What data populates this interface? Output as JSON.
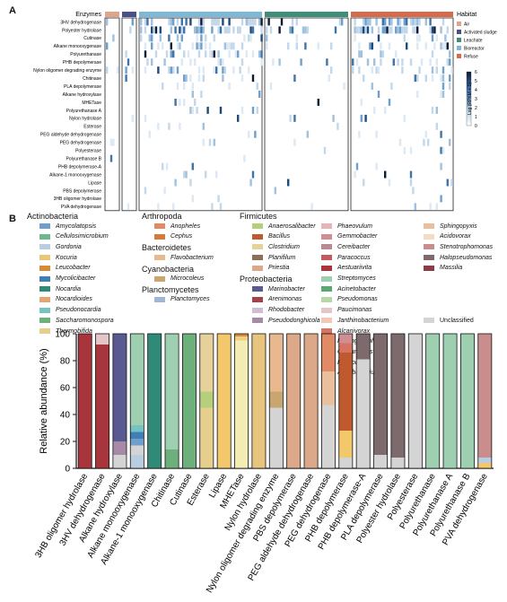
{
  "panel_labels": {
    "a": "A",
    "b": "B"
  },
  "chart_data": [
    {
      "type": "heatmap",
      "panel": "A",
      "column_group_label": "Enzymes",
      "rows": [
        "3HV dehydrogenase",
        "Polyester hydrolase",
        "Cutinase",
        "Alkane monooxygenase",
        "Polyurethanase",
        "PHB depolymerase",
        "Nylon oligomer degrading enzyme",
        "Chitinase",
        "PLA depolymerase",
        "Alkane hydroxylase",
        "MHETase",
        "Polyurethanase A",
        "Nylon hydrolase",
        "Esterase",
        "PEG aldehyde dehydrogenase",
        "PEG dehydrogenase",
        "Polyesterase",
        "Polyurethanase B",
        "PHB depolymerase-A",
        "Alkane-1 monooxygenase",
        "Lipase",
        "PBS depolymerase",
        "3HB oligomer hydrolase",
        "PVA dehydrogenase"
      ],
      "habitat_legend": {
        "title": "Habitat",
        "entries": [
          {
            "label": "Air",
            "color": "#e0a48a"
          },
          {
            "label": "Activated sludge",
            "color": "#4a4f8a"
          },
          {
            "label": "Leachate",
            "color": "#3e8f7a"
          },
          {
            "label": "Bioreactor",
            "color": "#7db8d8"
          },
          {
            "label": "Refuse",
            "color": "#d86a4c"
          }
        ]
      },
      "habitat_bar_order": [
        "Air",
        "Activated sludge",
        "Bioreactor",
        "Leachate",
        "Refuse"
      ],
      "colorbar": {
        "label": "Log (RPKM + 1)",
        "ticks": [
          "0",
          "1",
          "2",
          "3",
          "4",
          "5",
          "6"
        ],
        "range": [
          0,
          6
        ]
      }
    },
    {
      "type": "bar",
      "panel": "B",
      "stacked": true,
      "ylabel": "Relative abundance (%)",
      "ylim": [
        0,
        100
      ],
      "yticks": [
        0,
        20,
        40,
        60,
        80,
        100
      ],
      "categories": [
        "3HB oligomer hydrolase",
        "3HV dehydrogenase",
        "Alkane hydroxylase",
        "Alkane monooxygenase",
        "Alkane-1 monooxygenase",
        "Chitinase",
        "Cutinase",
        "Esterase",
        "Lipase",
        "MHETase",
        "Nylon hydrolase",
        "Nylon oligomer degrading enzyme",
        "PBS depolymerase",
        "PEG aldehyde dehydrogenase",
        "PEG dehydrogenase",
        "PHB depolymerase",
        "PHB depolymerase-A",
        "PLA depolymerase",
        "Polyester hydrolase",
        "Polyesterase",
        "Polyurethanase",
        "Polyurethanase A",
        "Polyurethanase B",
        "PVA dehydrogenase"
      ],
      "legend": [
        {
          "group": "Actinobacteria",
          "items": [
            {
              "name": "Amycolatopsis",
              "color": "#6f9fca"
            },
            {
              "name": "Cellulosimicrobium",
              "color": "#6fb78f"
            },
            {
              "name": "Gordonia",
              "color": "#b9cde0"
            },
            {
              "name": "Kocuria",
              "color": "#e9c77a"
            },
            {
              "name": "Leucobacter",
              "color": "#d98a38"
            },
            {
              "name": "Mycolicibacter",
              "color": "#3f7fb5"
            },
            {
              "name": "Nocardia",
              "color": "#2f8a78"
            },
            {
              "name": "Nocardioides",
              "color": "#e6a56f"
            },
            {
              "name": "Pseudonocardia",
              "color": "#79c2c2"
            },
            {
              "name": "Saccharomonospora",
              "color": "#6db07b"
            },
            {
              "name": "Thermobifida",
              "color": "#e6cf8c"
            }
          ]
        },
        {
          "group": "Arthropoda",
          "items": [
            {
              "name": "Anopheles",
              "color": "#e08a66"
            },
            {
              "name": "Cephus",
              "color": "#d67a3a"
            }
          ]
        },
        {
          "group": "Bacteroidetes",
          "items": [
            {
              "name": "Flavobacterium",
              "color": "#e8b98f"
            }
          ]
        },
        {
          "group": "Cyanobacteria",
          "items": [
            {
              "name": "Microcoleus",
              "color": "#c9a56f"
            }
          ]
        },
        {
          "group": "Planctomycetes",
          "items": [
            {
              "name": "Planctomyces",
              "color": "#9fb6d6"
            }
          ]
        },
        {
          "group": "Firmicutes",
          "items": [
            {
              "name": "Anaerosalibacter",
              "color": "#b5cf7c"
            },
            {
              "name": "Bacillus",
              "color": "#bf5a2f"
            },
            {
              "name": "Clostridium",
              "color": "#e6d19a"
            },
            {
              "name": "Planifilum",
              "color": "#8c6f5a"
            },
            {
              "name": "Priestia",
              "color": "#dba88a"
            }
          ]
        },
        {
          "group": "Proteobacteria",
          "items": [
            {
              "name": "Marinobacter",
              "color": "#5a5a92"
            },
            {
              "name": "Arenimonas",
              "color": "#a8404a"
            },
            {
              "name": "Rhodobacter",
              "color": "#cdbdd6"
            },
            {
              "name": "Pseudodonghicola",
              "color": "#a78aa8"
            },
            {
              "name": "Phaeovulum",
              "color": "#e7b5b8"
            },
            {
              "name": "Gemmobacter",
              "color": "#cf8f92"
            },
            {
              "name": "Cereibacter",
              "color": "#b98a95"
            },
            {
              "name": "Paracoccus",
              "color": "#c25a62"
            },
            {
              "name": "Aestuariivita",
              "color": "#a8343c"
            },
            {
              "name": "Streptomyces",
              "color": "#9dcfb0"
            },
            {
              "name": "Acinetobacter",
              "color": "#58a86f"
            },
            {
              "name": "Pseudomonas",
              "color": "#b4d9a6"
            },
            {
              "name": "Paucimonas",
              "color": "#e4c6c8"
            },
            {
              "name": "Janthinobacterium",
              "color": "#f0c9b4"
            },
            {
              "name": "Alcanivorax",
              "color": "#d67364"
            },
            {
              "name": "Hydrogenophaga",
              "color": "#f2c86a"
            },
            {
              "name": "Comamonas",
              "color": "#f3ecb3"
            },
            {
              "name": "Ralstonia",
              "color": "#eed084"
            },
            {
              "name": "Aquabacterium",
              "color": "#e8c57e"
            },
            {
              "name": "Sphingopyxis",
              "color": "#eabf9b"
            },
            {
              "name": "Acidovorax",
              "color": "#f4dcc4"
            },
            {
              "name": "Stenotrophomonas",
              "color": "#c98d8e"
            },
            {
              "name": "Halopseudomonas",
              "color": "#7d6a6c"
            },
            {
              "name": "Massilia",
              "color": "#8c3c47"
            }
          ]
        },
        {
          "group": "",
          "items": [
            {
              "name": "Unclassified",
              "color": "#d4d4d4"
            }
          ]
        }
      ],
      "stacks": [
        [
          {
            "genus": "Aestuariivita",
            "value": 100
          }
        ],
        [
          {
            "genus": "Aestuariivita",
            "value": 92
          },
          {
            "genus": "Paucimonas",
            "value": 8
          }
        ],
        [
          {
            "genus": "Unclassified",
            "value": 10
          },
          {
            "genus": "Pseudodonghicola",
            "value": 10
          },
          {
            "genus": "Marinobacter",
            "value": 80
          }
        ],
        [
          {
            "genus": "Gordonia",
            "value": 10
          },
          {
            "genus": "Unclassified",
            "value": 7
          },
          {
            "genus": "Amycolatopsis",
            "value": 5
          },
          {
            "genus": "Mycolicibacter",
            "value": 5
          },
          {
            "genus": "Pseudonocardia",
            "value": 5
          },
          {
            "genus": "Streptomyces",
            "value": 68
          }
        ],
        [
          {
            "genus": "Nocardia",
            "value": 100
          }
        ],
        [
          {
            "genus": "Saccharomonospora",
            "value": 14
          },
          {
            "genus": "Streptomyces",
            "value": 86
          }
        ],
        [
          {
            "genus": "Saccharomonospora",
            "value": 100
          }
        ],
        [
          {
            "genus": "Thermobifida",
            "value": 45
          },
          {
            "genus": "Anaerosalibacter",
            "value": 12
          },
          {
            "genus": "Clostridium",
            "value": 43
          }
        ],
        [
          {
            "genus": "Hydrogenophaga",
            "value": 100
          }
        ],
        [
          {
            "genus": "Comamonas",
            "value": 95
          },
          {
            "genus": "Ralstonia",
            "value": 3
          },
          {
            "genus": "Leucobacter",
            "value": 2
          }
        ],
        [
          {
            "genus": "Aquabacterium",
            "value": 100
          }
        ],
        [
          {
            "genus": "Unclassified",
            "value": 45
          },
          {
            "genus": "Microcoleus",
            "value": 12
          },
          {
            "genus": "Flavobacterium",
            "value": 43
          }
        ],
        [
          {
            "genus": "Priestia",
            "value": 100
          }
        ],
        [
          {
            "genus": "Priestia",
            "value": 100
          }
        ],
        [
          {
            "genus": "Unclassified",
            "value": 47
          },
          {
            "genus": "Sphingopyxis",
            "value": 25
          },
          {
            "genus": "Anopheles",
            "value": 28
          }
        ],
        [
          {
            "genus": "Unclassified",
            "value": 8
          },
          {
            "genus": "Hydrogenophaga",
            "value": 20
          },
          {
            "genus": "Bacillus",
            "value": 58
          },
          {
            "genus": "Alcanivorax",
            "value": 7
          },
          {
            "genus": "Gemmobacter",
            "value": 7
          }
        ],
        [
          {
            "genus": "Unclassified",
            "value": 81
          },
          {
            "genus": "Halopseudomonas",
            "value": 19
          }
        ],
        [
          {
            "genus": "Unclassified",
            "value": 10
          },
          {
            "genus": "Halopseudomonas",
            "value": 90
          }
        ],
        [
          {
            "genus": "Unclassified",
            "value": 8
          },
          {
            "genus": "Halopseudomonas",
            "value": 92
          }
        ],
        [
          {
            "genus": "Unclassified",
            "value": 100
          }
        ],
        [
          {
            "genus": "Streptomyces",
            "value": 100
          }
        ],
        [
          {
            "genus": "Streptomyces",
            "value": 100
          }
        ],
        [
          {
            "genus": "Streptomyces",
            "value": 100
          }
        ],
        [
          {
            "genus": "Hydrogenophaga",
            "value": 4
          },
          {
            "genus": "Gordonia",
            "value": 4
          },
          {
            "genus": "Stenotrophomonas",
            "value": 92
          }
        ]
      ]
    }
  ]
}
